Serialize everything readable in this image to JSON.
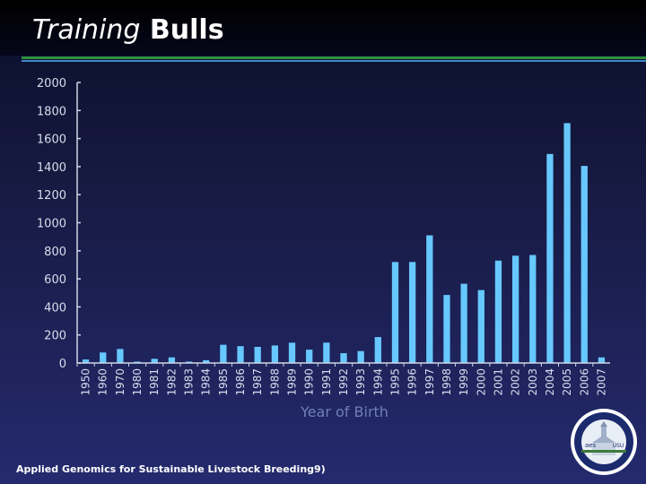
{
  "header": {
    "title_italic": "Training",
    "title_rest": "Bulls"
  },
  "footer": {
    "text": "Applied Genomics for Sustainable Livestock Breeding9)"
  },
  "seal": {
    "label_left": "aes",
    "label_right": "USU"
  },
  "colors": {
    "bar": "#66c8ff",
    "axis": "#cfd6e6",
    "tick_text": "#d8deec",
    "xlabel": "#6f7fb8"
  },
  "chart_data": {
    "type": "bar",
    "xlabel": "Year  of Birth",
    "ylabel": "",
    "ylim": [
      0,
      2000
    ],
    "yticks": [
      0,
      200,
      400,
      600,
      800,
      1000,
      1200,
      1400,
      1600,
      1800,
      2000
    ],
    "categories": [
      "1950",
      "1960",
      "1970",
      "1980",
      "1981",
      "1982",
      "1983",
      "1984",
      "1985",
      "1986",
      "1987",
      "1988",
      "1989",
      "1990",
      "1991",
      "1992",
      "1993",
      "1994",
      "1995",
      "1996",
      "1997",
      "1998",
      "1999",
      "2000",
      "2001",
      "2002",
      "2003",
      "2004",
      "2005",
      "2006",
      "2007"
    ],
    "values": [
      25,
      75,
      100,
      10,
      30,
      40,
      10,
      20,
      130,
      120,
      115,
      125,
      145,
      95,
      145,
      70,
      85,
      185,
      720,
      720,
      910,
      485,
      565,
      520,
      730,
      765,
      770,
      1490,
      1710,
      1405,
      40
    ],
    "grid": false,
    "legend": "none"
  }
}
